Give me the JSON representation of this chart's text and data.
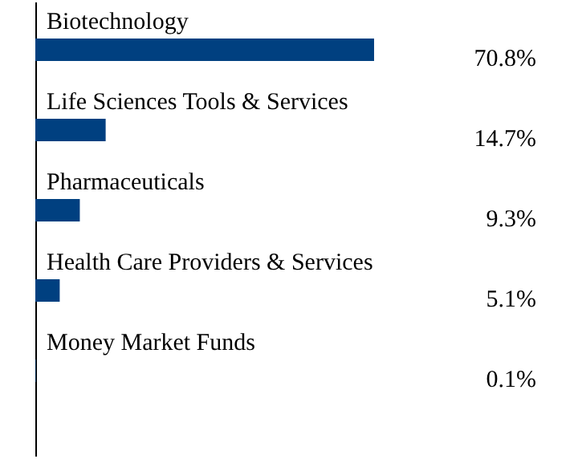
{
  "chart_data": {
    "type": "bar",
    "orientation": "horizontal",
    "categories": [
      "Biotechnology",
      "Life Sciences Tools & Services",
      "Pharmaceuticals",
      "Health Care Providers & Services",
      "Money Market Funds"
    ],
    "values": [
      70.8,
      14.7,
      9.3,
      5.1,
      0.1
    ],
    "value_labels": [
      "70.8%",
      "14.7%",
      "9.3%",
      "5.1%",
      "0.1%"
    ],
    "color": "#004080"
  }
}
